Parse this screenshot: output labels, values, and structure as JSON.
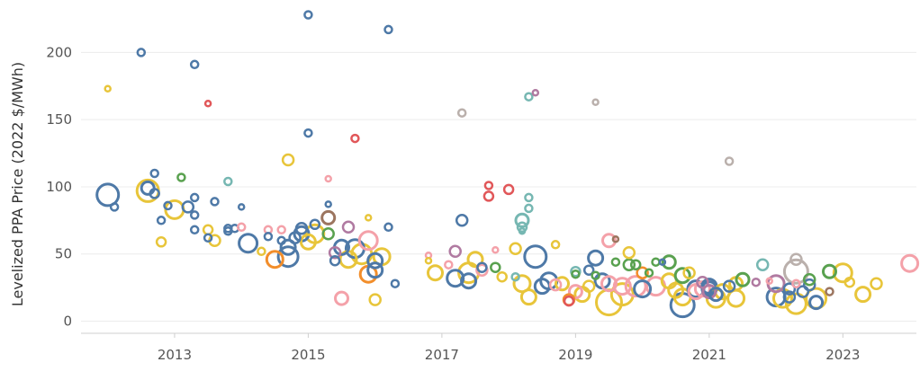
{
  "colors": {
    "blue": "#4e79a7",
    "yellow": "#e8c53a",
    "orange": "#f28e2b",
    "red": "#e15759",
    "teal": "#76b7b2",
    "green": "#59a14f",
    "pink": "#f4a1a9",
    "purple": "#b07aa1",
    "brown": "#9c755f",
    "gray": "#bab0ac"
  },
  "chart_data": {
    "type": "scatter",
    "title": "",
    "xlabel": "",
    "ylabel": "Levelized PPA Price (2022 $/MWh)",
    "xlim": [
      2011.6,
      2024.1
    ],
    "ylim": [
      -9,
      235
    ],
    "grid": true,
    "xticks": [
      2013,
      2015,
      2017,
      2019,
      2021,
      2023
    ],
    "yticks": [
      0,
      50,
      100,
      150,
      200
    ],
    "size_encoding": "marker radius varies by project",
    "points": [
      {
        "x": 2012.0,
        "y": 94,
        "c": "blue",
        "s": 12
      },
      {
        "x": 2012.1,
        "y": 85,
        "c": "blue",
        "s": 4
      },
      {
        "x": 2012.0,
        "y": 173,
        "c": "yellow",
        "s": 3
      },
      {
        "x": 2012.5,
        "y": 200,
        "c": "blue",
        "s": 4
      },
      {
        "x": 2012.6,
        "y": 99,
        "c": "blue",
        "s": 7
      },
      {
        "x": 2012.6,
        "y": 97,
        "c": "yellow",
        "s": 12
      },
      {
        "x": 2012.7,
        "y": 95,
        "c": "blue",
        "s": 5
      },
      {
        "x": 2012.7,
        "y": 110,
        "c": "blue",
        "s": 4
      },
      {
        "x": 2012.8,
        "y": 75,
        "c": "blue",
        "s": 4
      },
      {
        "x": 2012.8,
        "y": 59,
        "c": "yellow",
        "s": 5
      },
      {
        "x": 2012.9,
        "y": 86,
        "c": "blue",
        "s": 4
      },
      {
        "x": 2013.0,
        "y": 83,
        "c": "yellow",
        "s": 10
      },
      {
        "x": 2013.1,
        "y": 107,
        "c": "green",
        "s": 4
      },
      {
        "x": 2013.2,
        "y": 85,
        "c": "blue",
        "s": 6
      },
      {
        "x": 2013.3,
        "y": 191,
        "c": "blue",
        "s": 4
      },
      {
        "x": 2013.3,
        "y": 92,
        "c": "blue",
        "s": 4
      },
      {
        "x": 2013.3,
        "y": 79,
        "c": "blue",
        "s": 4
      },
      {
        "x": 2013.3,
        "y": 68,
        "c": "blue",
        "s": 4
      },
      {
        "x": 2013.5,
        "y": 162,
        "c": "red",
        "s": 3
      },
      {
        "x": 2013.5,
        "y": 68,
        "c": "yellow",
        "s": 5
      },
      {
        "x": 2013.5,
        "y": 62,
        "c": "blue",
        "s": 4
      },
      {
        "x": 2013.6,
        "y": 89,
        "c": "blue",
        "s": 4
      },
      {
        "x": 2013.6,
        "y": 60,
        "c": "yellow",
        "s": 6
      },
      {
        "x": 2013.8,
        "y": 104,
        "c": "teal",
        "s": 4
      },
      {
        "x": 2013.8,
        "y": 69,
        "c": "blue",
        "s": 4
      },
      {
        "x": 2013.8,
        "y": 67,
        "c": "blue",
        "s": 4
      },
      {
        "x": 2013.9,
        "y": 69,
        "c": "blue",
        "s": 4
      },
      {
        "x": 2014.0,
        "y": 85,
        "c": "blue",
        "s": 3
      },
      {
        "x": 2014.0,
        "y": 70,
        "c": "pink",
        "s": 4
      },
      {
        "x": 2014.1,
        "y": 58,
        "c": "blue",
        "s": 10
      },
      {
        "x": 2014.3,
        "y": 52,
        "c": "yellow",
        "s": 4
      },
      {
        "x": 2014.4,
        "y": 68,
        "c": "pink",
        "s": 4
      },
      {
        "x": 2014.4,
        "y": 63,
        "c": "blue",
        "s": 4
      },
      {
        "x": 2014.5,
        "y": 46,
        "c": "orange",
        "s": 9
      },
      {
        "x": 2014.6,
        "y": 68,
        "c": "pink",
        "s": 4
      },
      {
        "x": 2014.6,
        "y": 60,
        "c": "blue",
        "s": 4
      },
      {
        "x": 2014.7,
        "y": 120,
        "c": "yellow",
        "s": 6
      },
      {
        "x": 2014.7,
        "y": 48,
        "c": "blue",
        "s": 11
      },
      {
        "x": 2014.7,
        "y": 55,
        "c": "blue",
        "s": 8
      },
      {
        "x": 2014.8,
        "y": 62,
        "c": "blue",
        "s": 6
      },
      {
        "x": 2014.9,
        "y": 65,
        "c": "blue",
        "s": 8
      },
      {
        "x": 2014.9,
        "y": 69,
        "c": "blue",
        "s": 6
      },
      {
        "x": 2015.0,
        "y": 228,
        "c": "blue",
        "s": 4
      },
      {
        "x": 2015.0,
        "y": 140,
        "c": "blue",
        "s": 4
      },
      {
        "x": 2015.0,
        "y": 59,
        "c": "yellow",
        "s": 8
      },
      {
        "x": 2015.1,
        "y": 65,
        "c": "yellow",
        "s": 10
      },
      {
        "x": 2015.1,
        "y": 72,
        "c": "blue",
        "s": 5
      },
      {
        "x": 2015.3,
        "y": 106,
        "c": "pink",
        "s": 3
      },
      {
        "x": 2015.3,
        "y": 87,
        "c": "blue",
        "s": 3
      },
      {
        "x": 2015.3,
        "y": 77,
        "c": "brown",
        "s": 7
      },
      {
        "x": 2015.3,
        "y": 65,
        "c": "green",
        "s": 6
      },
      {
        "x": 2015.4,
        "y": 51,
        "c": "purple",
        "s": 6
      },
      {
        "x": 2015.4,
        "y": 45,
        "c": "blue",
        "s": 5
      },
      {
        "x": 2015.5,
        "y": 17,
        "c": "pink",
        "s": 7
      },
      {
        "x": 2015.5,
        "y": 55,
        "c": "blue",
        "s": 8
      },
      {
        "x": 2015.6,
        "y": 70,
        "c": "purple",
        "s": 6
      },
      {
        "x": 2015.6,
        "y": 46,
        "c": "yellow",
        "s": 9
      },
      {
        "x": 2015.7,
        "y": 136,
        "c": "red",
        "s": 4
      },
      {
        "x": 2015.7,
        "y": 54,
        "c": "blue",
        "s": 10
      },
      {
        "x": 2015.8,
        "y": 50,
        "c": "yellow",
        "s": 11
      },
      {
        "x": 2015.9,
        "y": 77,
        "c": "yellow",
        "s": 3
      },
      {
        "x": 2015.9,
        "y": 60,
        "c": "pink",
        "s": 10
      },
      {
        "x": 2015.9,
        "y": 35,
        "c": "orange",
        "s": 9
      },
      {
        "x": 2016.0,
        "y": 16,
        "c": "yellow",
        "s": 6
      },
      {
        "x": 2016.0,
        "y": 38,
        "c": "blue",
        "s": 8
      },
      {
        "x": 2016.0,
        "y": 45,
        "c": "blue",
        "s": 8
      },
      {
        "x": 2016.1,
        "y": 48,
        "c": "yellow",
        "s": 9
      },
      {
        "x": 2016.2,
        "y": 217,
        "c": "blue",
        "s": 4
      },
      {
        "x": 2016.2,
        "y": 70,
        "c": "blue",
        "s": 4
      },
      {
        "x": 2016.3,
        "y": 28,
        "c": "blue",
        "s": 4
      },
      {
        "x": 2016.8,
        "y": 49,
        "c": "pink",
        "s": 3
      },
      {
        "x": 2016.8,
        "y": 45,
        "c": "yellow",
        "s": 3
      },
      {
        "x": 2016.9,
        "y": 36,
        "c": "yellow",
        "s": 8
      },
      {
        "x": 2017.1,
        "y": 42,
        "c": "pink",
        "s": 4
      },
      {
        "x": 2017.2,
        "y": 32,
        "c": "blue",
        "s": 9
      },
      {
        "x": 2017.2,
        "y": 52,
        "c": "purple",
        "s": 6
      },
      {
        "x": 2017.3,
        "y": 155,
        "c": "gray",
        "s": 4
      },
      {
        "x": 2017.3,
        "y": 75,
        "c": "blue",
        "s": 6
      },
      {
        "x": 2017.4,
        "y": 36,
        "c": "yellow",
        "s": 11
      },
      {
        "x": 2017.4,
        "y": 30,
        "c": "blue",
        "s": 8
      },
      {
        "x": 2017.5,
        "y": 46,
        "c": "yellow",
        "s": 8
      },
      {
        "x": 2017.6,
        "y": 38,
        "c": "pink",
        "s": 6
      },
      {
        "x": 2017.6,
        "y": 40,
        "c": "blue",
        "s": 5
      },
      {
        "x": 2017.7,
        "y": 101,
        "c": "red",
        "s": 4
      },
      {
        "x": 2017.7,
        "y": 93,
        "c": "red",
        "s": 5
      },
      {
        "x": 2017.8,
        "y": 40,
        "c": "green",
        "s": 5
      },
      {
        "x": 2017.8,
        "y": 53,
        "c": "pink",
        "s": 3
      },
      {
        "x": 2017.9,
        "y": 33,
        "c": "yellow",
        "s": 5
      },
      {
        "x": 2018.0,
        "y": 98,
        "c": "red",
        "s": 5
      },
      {
        "x": 2018.1,
        "y": 54,
        "c": "yellow",
        "s": 6
      },
      {
        "x": 2018.1,
        "y": 33,
        "c": "teal",
        "s": 4
      },
      {
        "x": 2018.2,
        "y": 75,
        "c": "teal",
        "s": 7
      },
      {
        "x": 2018.2,
        "y": 70,
        "c": "teal",
        "s": 5
      },
      {
        "x": 2018.2,
        "y": 67,
        "c": "teal",
        "s": 3
      },
      {
        "x": 2018.2,
        "y": 28,
        "c": "yellow",
        "s": 9
      },
      {
        "x": 2018.3,
        "y": 167,
        "c": "teal",
        "s": 4
      },
      {
        "x": 2018.3,
        "y": 92,
        "c": "teal",
        "s": 4
      },
      {
        "x": 2018.3,
        "y": 84,
        "c": "teal",
        "s": 4
      },
      {
        "x": 2018.3,
        "y": 18,
        "c": "yellow",
        "s": 8
      },
      {
        "x": 2018.4,
        "y": 170,
        "c": "purple",
        "s": 3
      },
      {
        "x": 2018.4,
        "y": 48,
        "c": "blue",
        "s": 12
      },
      {
        "x": 2018.5,
        "y": 26,
        "c": "blue",
        "s": 8
      },
      {
        "x": 2018.6,
        "y": 30,
        "c": "blue",
        "s": 9
      },
      {
        "x": 2018.7,
        "y": 57,
        "c": "yellow",
        "s": 4
      },
      {
        "x": 2018.7,
        "y": 27,
        "c": "pink",
        "s": 6
      },
      {
        "x": 2018.8,
        "y": 28,
        "c": "yellow",
        "s": 7
      },
      {
        "x": 2018.9,
        "y": 16,
        "c": "orange",
        "s": 6
      },
      {
        "x": 2018.9,
        "y": 15,
        "c": "red",
        "s": 5
      },
      {
        "x": 2019.0,
        "y": 35,
        "c": "green",
        "s": 4
      },
      {
        "x": 2019.0,
        "y": 37,
        "c": "teal",
        "s": 5
      },
      {
        "x": 2019.0,
        "y": 22,
        "c": "pink",
        "s": 7
      },
      {
        "x": 2019.1,
        "y": 20,
        "c": "yellow",
        "s": 8
      },
      {
        "x": 2019.2,
        "y": 38,
        "c": "blue",
        "s": 5
      },
      {
        "x": 2019.2,
        "y": 26,
        "c": "yellow",
        "s": 6
      },
      {
        "x": 2019.3,
        "y": 47,
        "c": "blue",
        "s": 8
      },
      {
        "x": 2019.3,
        "y": 34,
        "c": "green",
        "s": 4
      },
      {
        "x": 2019.3,
        "y": 163,
        "c": "gray",
        "s": 3
      },
      {
        "x": 2019.4,
        "y": 30,
        "c": "blue",
        "s": 8
      },
      {
        "x": 2019.5,
        "y": 28,
        "c": "pink",
        "s": 8
      },
      {
        "x": 2019.5,
        "y": 14,
        "c": "yellow",
        "s": 14
      },
      {
        "x": 2019.5,
        "y": 60,
        "c": "pink",
        "s": 7
      },
      {
        "x": 2019.6,
        "y": 61,
        "c": "brown",
        "s": 3
      },
      {
        "x": 2019.6,
        "y": 44,
        "c": "green",
        "s": 4
      },
      {
        "x": 2019.7,
        "y": 20,
        "c": "yellow",
        "s": 12
      },
      {
        "x": 2019.7,
        "y": 26,
        "c": "pink",
        "s": 9
      },
      {
        "x": 2019.8,
        "y": 42,
        "c": "green",
        "s": 6
      },
      {
        "x": 2019.8,
        "y": 51,
        "c": "yellow",
        "s": 6
      },
      {
        "x": 2019.9,
        "y": 42,
        "c": "green",
        "s": 5
      },
      {
        "x": 2019.9,
        "y": 26,
        "c": "pink",
        "s": 11
      },
      {
        "x": 2020.0,
        "y": 36,
        "c": "orange",
        "s": 6
      },
      {
        "x": 2020.0,
        "y": 24,
        "c": "blue",
        "s": 9
      },
      {
        "x": 2020.1,
        "y": 36,
        "c": "green",
        "s": 4
      },
      {
        "x": 2020.2,
        "y": 26,
        "c": "pink",
        "s": 10
      },
      {
        "x": 2020.2,
        "y": 44,
        "c": "green",
        "s": 4
      },
      {
        "x": 2020.3,
        "y": 44,
        "c": "blue",
        "s": 3
      },
      {
        "x": 2020.4,
        "y": 44,
        "c": "green",
        "s": 7
      },
      {
        "x": 2020.4,
        "y": 30,
        "c": "yellow",
        "s": 8
      },
      {
        "x": 2020.5,
        "y": 23,
        "c": "yellow",
        "s": 8
      },
      {
        "x": 2020.6,
        "y": 34,
        "c": "green",
        "s": 8
      },
      {
        "x": 2020.6,
        "y": 18,
        "c": "yellow",
        "s": 9
      },
      {
        "x": 2020.6,
        "y": 12,
        "c": "blue",
        "s": 13
      },
      {
        "x": 2020.7,
        "y": 36,
        "c": "yellow",
        "s": 6
      },
      {
        "x": 2020.8,
        "y": 22,
        "c": "pink",
        "s": 8
      },
      {
        "x": 2020.8,
        "y": 24,
        "c": "blue",
        "s": 9
      },
      {
        "x": 2020.9,
        "y": 24,
        "c": "pink",
        "s": 8
      },
      {
        "x": 2020.9,
        "y": 29,
        "c": "purple",
        "s": 6
      },
      {
        "x": 2021.0,
        "y": 26,
        "c": "blue",
        "s": 8
      },
      {
        "x": 2021.0,
        "y": 22,
        "c": "purple",
        "s": 7
      },
      {
        "x": 2021.0,
        "y": 24,
        "c": "blue",
        "s": 8
      },
      {
        "x": 2021.1,
        "y": 20,
        "c": "blue",
        "s": 7
      },
      {
        "x": 2021.1,
        "y": 17,
        "c": "yellow",
        "s": 10
      },
      {
        "x": 2021.2,
        "y": 22,
        "c": "yellow",
        "s": 8
      },
      {
        "x": 2021.3,
        "y": 119,
        "c": "gray",
        "s": 4
      },
      {
        "x": 2021.3,
        "y": 26,
        "c": "blue",
        "s": 6
      },
      {
        "x": 2021.4,
        "y": 28,
        "c": "yellow",
        "s": 7
      },
      {
        "x": 2021.4,
        "y": 17,
        "c": "yellow",
        "s": 9
      },
      {
        "x": 2021.5,
        "y": 31,
        "c": "green",
        "s": 7
      },
      {
        "x": 2021.7,
        "y": 29,
        "c": "purple",
        "s": 4
      },
      {
        "x": 2021.8,
        "y": 42,
        "c": "teal",
        "s": 6
      },
      {
        "x": 2021.9,
        "y": 30,
        "c": "pink",
        "s": 3
      },
      {
        "x": 2022.0,
        "y": 18,
        "c": "blue",
        "s": 10
      },
      {
        "x": 2022.0,
        "y": 28,
        "c": "purple",
        "s": 9
      },
      {
        "x": 2022.1,
        "y": 17,
        "c": "yellow",
        "s": 10
      },
      {
        "x": 2022.2,
        "y": 24,
        "c": "blue",
        "s": 6
      },
      {
        "x": 2022.2,
        "y": 18,
        "c": "blue",
        "s": 6
      },
      {
        "x": 2022.3,
        "y": 37,
        "c": "gray",
        "s": 13
      },
      {
        "x": 2022.3,
        "y": 46,
        "c": "gray",
        "s": 6
      },
      {
        "x": 2022.3,
        "y": 28,
        "c": "pink",
        "s": 4
      },
      {
        "x": 2022.3,
        "y": 13,
        "c": "yellow",
        "s": 11
      },
      {
        "x": 2022.4,
        "y": 22,
        "c": "blue",
        "s": 6
      },
      {
        "x": 2022.5,
        "y": 27,
        "c": "blue",
        "s": 6
      },
      {
        "x": 2022.5,
        "y": 31,
        "c": "green",
        "s": 6
      },
      {
        "x": 2022.6,
        "y": 14,
        "c": "blue",
        "s": 7
      },
      {
        "x": 2022.6,
        "y": 17,
        "c": "yellow",
        "s": 11
      },
      {
        "x": 2022.8,
        "y": 37,
        "c": "green",
        "s": 7
      },
      {
        "x": 2022.8,
        "y": 22,
        "c": "brown",
        "s": 4
      },
      {
        "x": 2023.0,
        "y": 36,
        "c": "yellow",
        "s": 10
      },
      {
        "x": 2023.1,
        "y": 29,
        "c": "yellow",
        "s": 5
      },
      {
        "x": 2023.3,
        "y": 20,
        "c": "yellow",
        "s": 8
      },
      {
        "x": 2023.5,
        "y": 28,
        "c": "yellow",
        "s": 6
      },
      {
        "x": 2024.0,
        "y": 43,
        "c": "pink",
        "s": 9
      }
    ]
  }
}
